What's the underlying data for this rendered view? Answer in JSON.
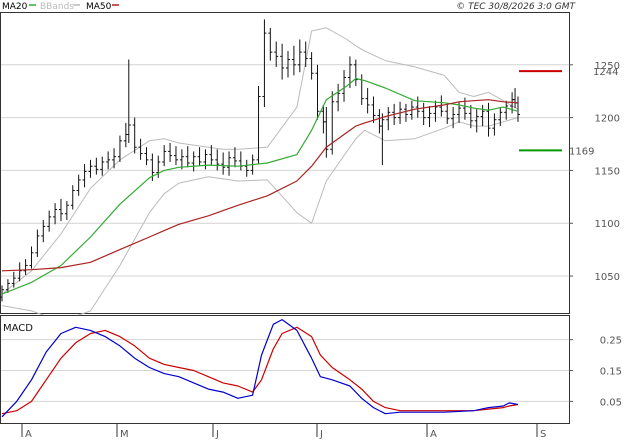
{
  "header": {
    "legend": [
      {
        "label": "MA20",
        "color": "#33aa33"
      },
      {
        "label": "BBands",
        "color": "#bbbbbb"
      },
      {
        "label": "MA50",
        "color": "#aa2222"
      }
    ],
    "copyright": "© TEC 30/8/2026 3:0 GMT"
  },
  "levels": {
    "resistance": {
      "value": 1244,
      "label": "1244",
      "color": "#cc0000"
    },
    "support": {
      "value": 1169,
      "label": "1169",
      "color": "#009900"
    }
  },
  "months": [
    "A",
    "M",
    "J",
    "J",
    "A",
    "S"
  ],
  "chart_data": [
    {
      "type": "line",
      "panel": "price",
      "ylim": [
        1015,
        1300
      ],
      "y_ticks": [
        1050,
        1100,
        1150,
        1200,
        1250
      ],
      "y_tick_labels": [
        "1050",
        "1100",
        "1150",
        "1200",
        "1250"
      ],
      "grid": true,
      "series": [
        {
          "name": "MA20",
          "color": "#33aa33",
          "x": [
            0,
            10,
            20,
            30,
            40,
            50,
            55,
            60,
            70,
            80,
            90,
            100,
            105,
            110,
            117,
            120,
            123,
            130,
            140,
            150,
            155,
            160,
            165,
            170,
            175
          ],
          "values": [
            1033,
            1044,
            1060,
            1087,
            1118,
            1143,
            1150,
            1153,
            1155,
            1154,
            1157,
            1165,
            1188,
            1217,
            1230,
            1237,
            1235,
            1228,
            1216,
            1214,
            1212,
            1209,
            1207,
            1210,
            1206
          ]
        },
        {
          "name": "MA50",
          "color": "#aa2222",
          "x": [
            0,
            10,
            20,
            30,
            40,
            50,
            55,
            60,
            70,
            80,
            90,
            100,
            105,
            110,
            117,
            120,
            123,
            130,
            140,
            150,
            155,
            160,
            165,
            170,
            175
          ],
          "values": [
            1055,
            1056,
            1058,
            1063,
            1075,
            1087,
            1093,
            1099,
            1107,
            1117,
            1126,
            1140,
            1154,
            1172,
            1186,
            1192,
            1195,
            1201,
            1208,
            1212,
            1215,
            1216,
            1217,
            1215,
            1214
          ]
        },
        {
          "name": "BBands upper",
          "color": "#bbbbbb",
          "x": [
            0,
            10,
            20,
            30,
            40,
            50,
            55,
            60,
            70,
            75,
            80,
            90,
            100,
            105,
            110,
            117,
            120,
            123,
            130,
            140,
            150,
            155,
            160,
            165,
            170,
            175
          ],
          "values": [
            1033,
            1055,
            1090,
            1133,
            1160,
            1178,
            1180,
            1176,
            1172,
            1170,
            1170,
            1172,
            1210,
            1282,
            1285,
            1274,
            1268,
            1263,
            1254,
            1248,
            1240,
            1224,
            1220,
            1224,
            1216,
            1208
          ]
        },
        {
          "name": "BBands lower",
          "color": "#bbbbbb",
          "x": [
            0,
            10,
            20,
            30,
            40,
            50,
            55,
            60,
            70,
            75,
            80,
            90,
            100,
            105,
            110,
            117,
            120,
            123,
            130,
            140,
            150,
            155,
            160,
            165,
            170,
            175
          ],
          "values": [
            1022,
            1017,
            1007,
            1017,
            1060,
            1110,
            1128,
            1138,
            1144,
            1142,
            1140,
            1141,
            1110,
            1100,
            1140,
            1168,
            1180,
            1188,
            1178,
            1180,
            1190,
            1196,
            1192,
            1192,
            1196,
            1200
          ]
        }
      ],
      "ohlc": [
        [
          0,
          1030,
          1041,
          1026,
          1037
        ],
        [
          2,
          1037,
          1047,
          1034,
          1043
        ],
        [
          4,
          1043,
          1054,
          1039,
          1048
        ],
        [
          6,
          1048,
          1063,
          1045,
          1055
        ],
        [
          8,
          1055,
          1066,
          1051,
          1060
        ],
        [
          10,
          1060,
          1078,
          1057,
          1072
        ],
        [
          12,
          1072,
          1094,
          1068,
          1088
        ],
        [
          14,
          1088,
          1103,
          1082,
          1097
        ],
        [
          16,
          1097,
          1112,
          1092,
          1106
        ],
        [
          18,
          1106,
          1119,
          1099,
          1113
        ],
        [
          20,
          1113,
          1123,
          1102,
          1109
        ],
        [
          22,
          1109,
          1121,
          1103,
          1117
        ],
        [
          24,
          1117,
          1136,
          1113,
          1131
        ],
        [
          26,
          1131,
          1146,
          1126,
          1141
        ],
        [
          28,
          1141,
          1156,
          1134,
          1149
        ],
        [
          30,
          1149,
          1160,
          1143,
          1154
        ],
        [
          32,
          1154,
          1162,
          1146,
          1151
        ],
        [
          34,
          1151,
          1163,
          1145,
          1158
        ],
        [
          36,
          1158,
          1168,
          1151,
          1160
        ],
        [
          38,
          1160,
          1171,
          1152,
          1163
        ],
        [
          40,
          1163,
          1183,
          1158,
          1178
        ],
        [
          42,
          1178,
          1195,
          1172,
          1184
        ],
        [
          43,
          1184,
          1255,
          1176,
          1193
        ],
        [
          45,
          1193,
          1200,
          1166,
          1172
        ],
        [
          47,
          1172,
          1180,
          1160,
          1166
        ],
        [
          49,
          1166,
          1172,
          1155,
          1160
        ],
        [
          51,
          1160,
          1166,
          1140,
          1148
        ],
        [
          53,
          1148,
          1164,
          1143,
          1158
        ],
        [
          55,
          1158,
          1174,
          1154,
          1168
        ],
        [
          57,
          1168,
          1176,
          1158,
          1164
        ],
        [
          59,
          1164,
          1173,
          1155,
          1160
        ],
        [
          61,
          1160,
          1170,
          1151,
          1163
        ],
        [
          63,
          1163,
          1173,
          1153,
          1157
        ],
        [
          65,
          1157,
          1168,
          1149,
          1163
        ],
        [
          67,
          1163,
          1172,
          1154,
          1158
        ],
        [
          69,
          1158,
          1170,
          1151,
          1165
        ],
        [
          71,
          1165,
          1174,
          1155,
          1160
        ],
        [
          73,
          1160,
          1170,
          1150,
          1156
        ],
        [
          75,
          1156,
          1167,
          1146,
          1153
        ],
        [
          77,
          1153,
          1168,
          1145,
          1162
        ],
        [
          79,
          1162,
          1172,
          1153,
          1159
        ],
        [
          81,
          1159,
          1168,
          1150,
          1154
        ],
        [
          83,
          1154,
          1160,
          1144,
          1150
        ],
        [
          85,
          1150,
          1165,
          1146,
          1160
        ],
        [
          87,
          1160,
          1230,
          1156,
          1220
        ],
        [
          89,
          1220,
          1293,
          1210,
          1280
        ],
        [
          91,
          1280,
          1285,
          1254,
          1262
        ],
        [
          93,
          1262,
          1272,
          1248,
          1258
        ],
        [
          95,
          1258,
          1270,
          1236,
          1247
        ],
        [
          97,
          1247,
          1263,
          1238,
          1255
        ],
        [
          99,
          1255,
          1268,
          1240,
          1250
        ],
        [
          101,
          1250,
          1274,
          1243,
          1262
        ],
        [
          103,
          1262,
          1272,
          1248,
          1256
        ],
        [
          105,
          1256,
          1262,
          1236,
          1242
        ],
        [
          107,
          1242,
          1250,
          1198,
          1206
        ],
        [
          109,
          1206,
          1212,
          1185,
          1196
        ],
        [
          110,
          1196,
          1210,
          1162,
          1170
        ],
        [
          112,
          1170,
          1225,
          1165,
          1215
        ],
        [
          114,
          1215,
          1232,
          1206,
          1223
        ],
        [
          116,
          1223,
          1245,
          1215,
          1238
        ],
        [
          118,
          1238,
          1258,
          1228,
          1250
        ],
        [
          120,
          1250,
          1255,
          1230,
          1236
        ],
        [
          122,
          1236,
          1241,
          1212,
          1218
        ],
        [
          124,
          1218,
          1228,
          1204,
          1212
        ],
        [
          126,
          1212,
          1220,
          1195,
          1202
        ],
        [
          128,
          1202,
          1208,
          1185,
          1192
        ],
        [
          129,
          1192,
          1204,
          1155,
          1198
        ],
        [
          131,
          1198,
          1210,
          1188,
          1205
        ],
        [
          133,
          1205,
          1213,
          1193,
          1200
        ],
        [
          135,
          1200,
          1215,
          1194,
          1208
        ],
        [
          137,
          1208,
          1213,
          1196,
          1203
        ],
        [
          139,
          1203,
          1216,
          1198,
          1210
        ],
        [
          141,
          1210,
          1220,
          1200,
          1206
        ],
        [
          143,
          1206,
          1214,
          1193,
          1200
        ],
        [
          145,
          1200,
          1211,
          1191,
          1204
        ],
        [
          147,
          1204,
          1216,
          1196,
          1210
        ],
        [
          149,
          1210,
          1221,
          1201,
          1206
        ],
        [
          151,
          1206,
          1214,
          1194,
          1199
        ],
        [
          153,
          1199,
          1210,
          1190,
          1203
        ],
        [
          155,
          1203,
          1215,
          1195,
          1209
        ],
        [
          157,
          1209,
          1219,
          1198,
          1204
        ],
        [
          159,
          1204,
          1212,
          1190,
          1197
        ],
        [
          161,
          1197,
          1208,
          1186,
          1201
        ],
        [
          163,
          1201,
          1212,
          1192,
          1206
        ],
        [
          165,
          1206,
          1214,
          1182,
          1190
        ],
        [
          167,
          1190,
          1204,
          1183,
          1198
        ],
        [
          169,
          1198,
          1210,
          1192,
          1205
        ],
        [
          171,
          1205,
          1216,
          1198,
          1211
        ],
        [
          173,
          1211,
          1224,
          1204,
          1217
        ],
        [
          174,
          1217,
          1228,
          1209,
          1214
        ],
        [
          175,
          1214,
          1220,
          1196,
          1203
        ]
      ]
    },
    {
      "type": "line",
      "panel": "macd",
      "title": "MACD",
      "ylim": [
        -2,
        33
      ],
      "y_ticks": [
        5,
        15,
        25
      ],
      "y_tick_labels": [
        "0.05",
        "0.15",
        "0.25"
      ],
      "grid": true,
      "series": [
        {
          "name": "MACD",
          "color": "#0000cc",
          "x": [
            0,
            5,
            10,
            15,
            20,
            25,
            30,
            35,
            40,
            45,
            50,
            55,
            60,
            65,
            70,
            75,
            80,
            85,
            88,
            92,
            95,
            100,
            105,
            108,
            112,
            118,
            122,
            126,
            130,
            135,
            140,
            150,
            160,
            165,
            170,
            172,
            175
          ],
          "values": [
            0,
            5,
            12,
            21,
            27,
            29,
            28,
            26,
            23,
            19,
            16,
            14,
            13,
            11,
            9,
            8,
            6,
            7,
            20,
            30,
            31.5,
            28,
            19,
            13,
            12,
            10,
            6,
            3,
            1,
            1.5,
            1.5,
            1.5,
            2,
            3,
            3.5,
            4.5,
            4
          ]
        },
        {
          "name": "Signal",
          "color": "#cc0000",
          "x": [
            0,
            5,
            10,
            15,
            20,
            25,
            30,
            35,
            40,
            45,
            50,
            55,
            60,
            65,
            70,
            75,
            80,
            85,
            88,
            92,
            95,
            100,
            105,
            108,
            112,
            118,
            122,
            126,
            130,
            135,
            140,
            150,
            160,
            165,
            170,
            172,
            175
          ],
          "values": [
            1,
            2,
            5,
            12,
            19,
            24,
            27,
            28,
            26,
            23,
            19,
            17,
            16,
            15,
            13,
            11,
            10,
            8,
            12,
            22,
            27,
            29,
            26,
            20,
            16,
            12,
            9,
            5,
            3,
            2,
            2,
            2,
            2,
            2.5,
            3,
            3.5,
            4
          ]
        }
      ]
    }
  ]
}
